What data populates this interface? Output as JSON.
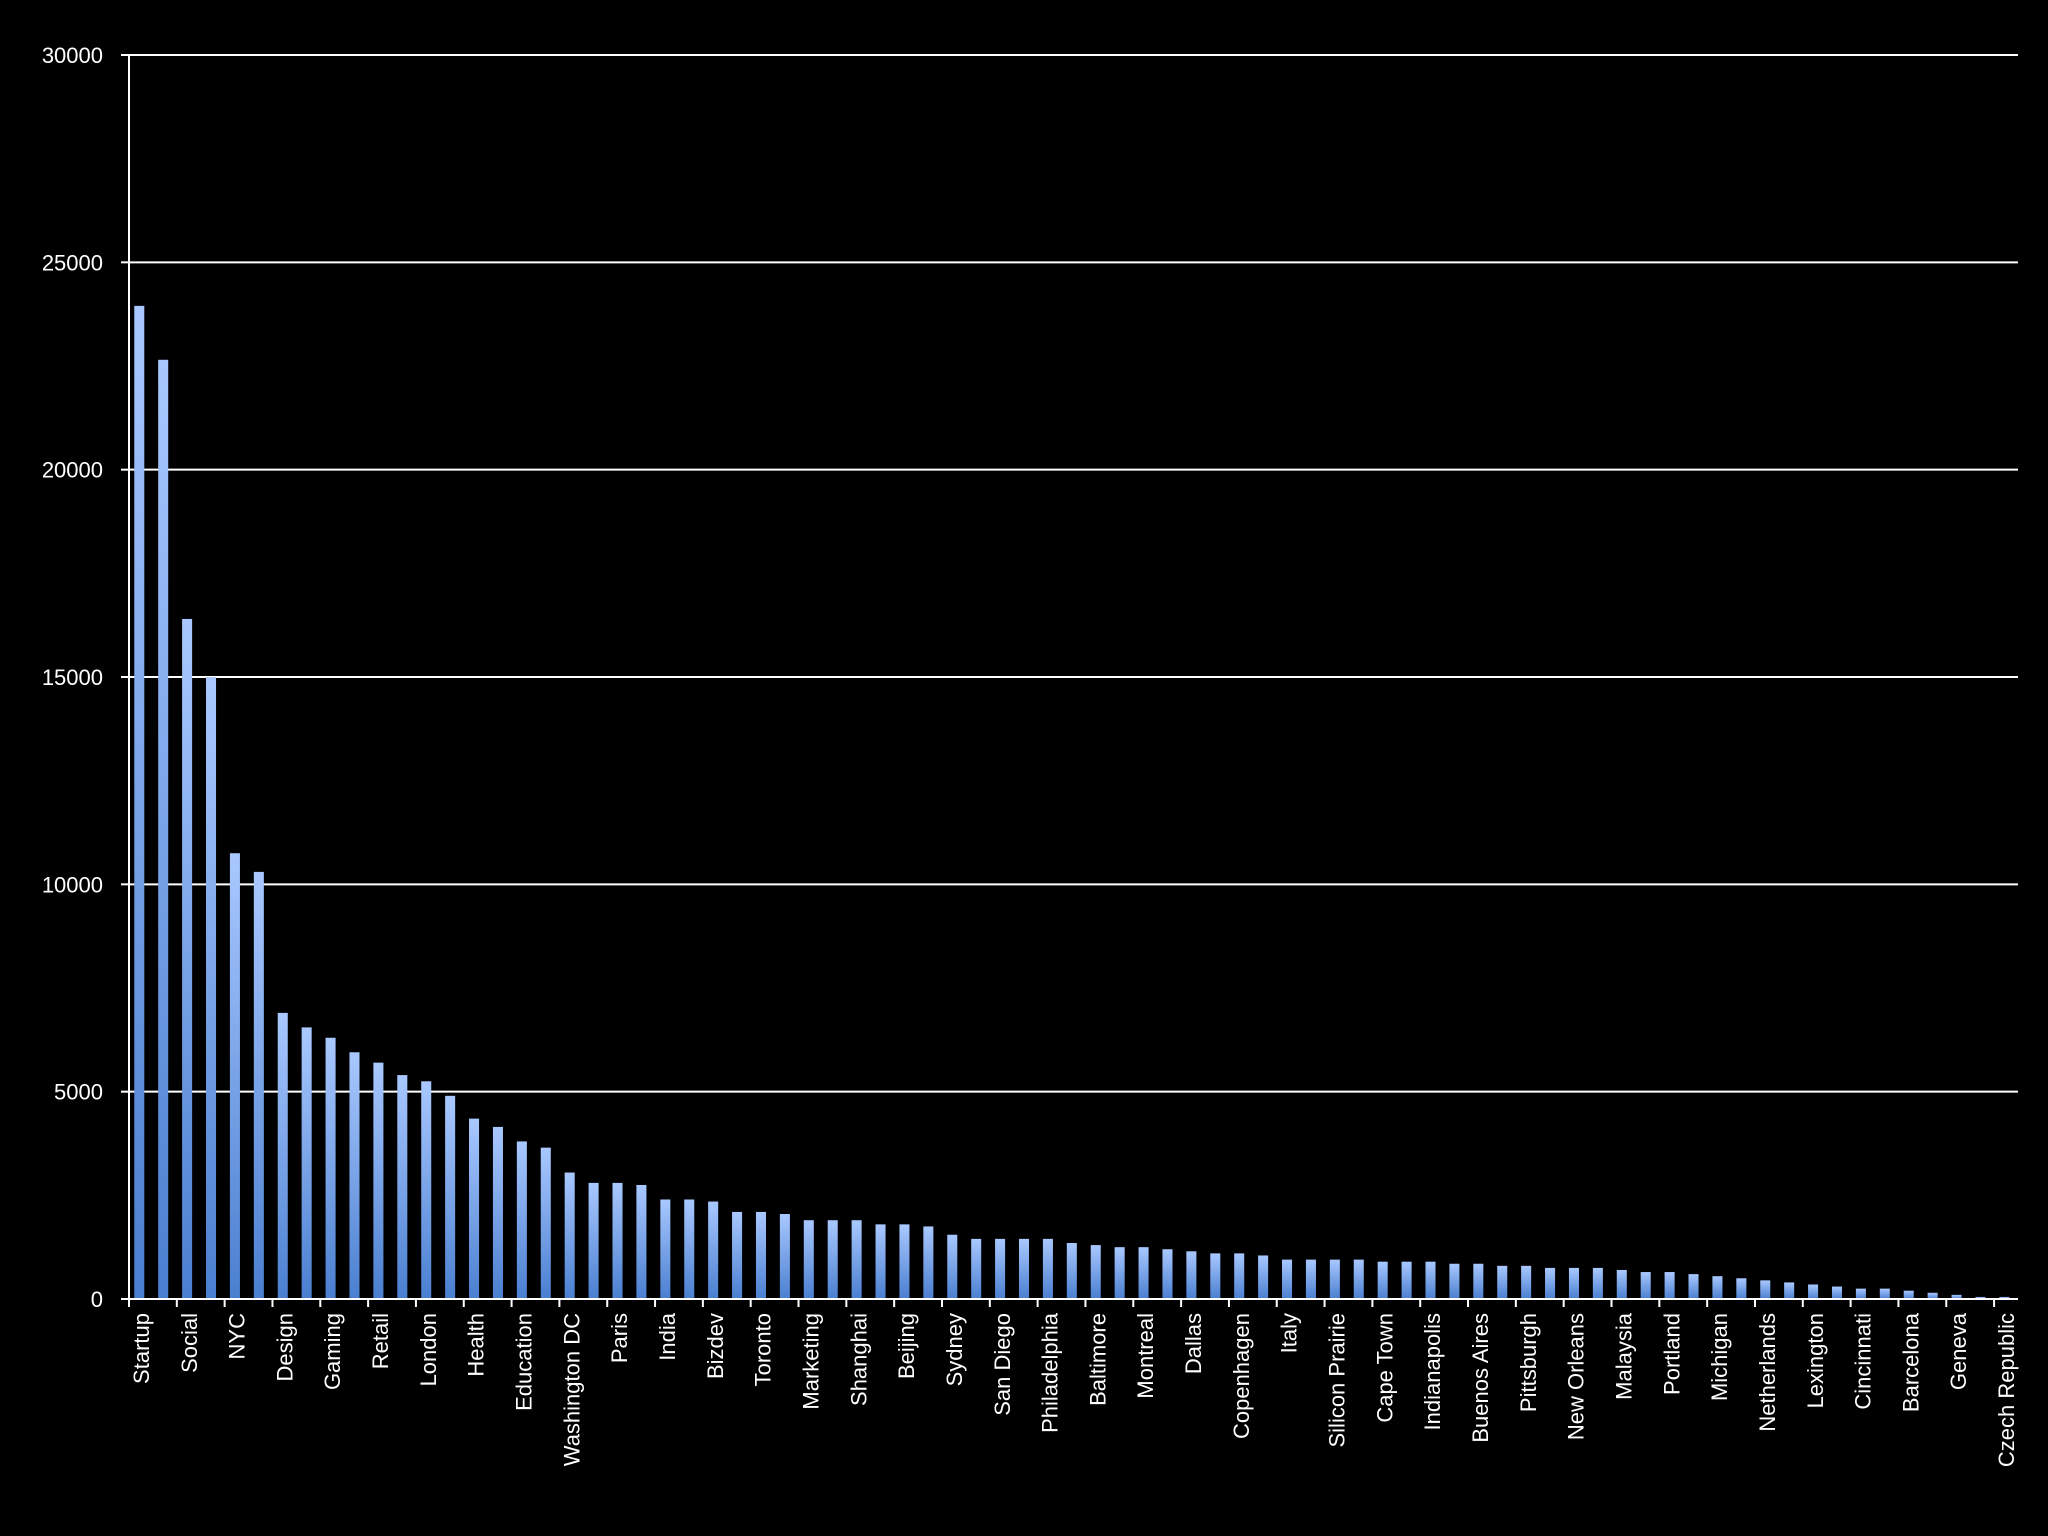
{
  "chart_data": {
    "type": "bar",
    "title": "",
    "xlabel": "",
    "ylabel": "",
    "ylim": [
      0,
      30000
    ],
    "yticks": [
      0,
      5000,
      10000,
      15000,
      20000,
      25000,
      30000
    ],
    "ytick_labels": [
      "0",
      "5000",
      "10000",
      "15000",
      "20000",
      "25000",
      "30000"
    ],
    "grid": true,
    "legend": "none",
    "bar_color_top": "#a9c8ff",
    "bar_color_bottom": "#4a7fd0",
    "background_color": "#000000",
    "axis_color": "#ffffff",
    "label_every": 2,
    "categories": [
      "Startup",
      "",
      "Social",
      "",
      "NYC",
      "",
      "Design",
      "",
      "Gaming",
      "",
      "Retail",
      "",
      "London",
      "",
      "Health",
      "",
      "Education",
      "",
      "Washington DC",
      "",
      "Paris",
      "",
      "India",
      "",
      "Bizdev",
      "",
      "Toronto",
      "",
      "Marketing",
      "",
      "Shanghai",
      "",
      "Beijing",
      "",
      "Sydney",
      "",
      "San Diego",
      "",
      "Philadelphia",
      "",
      "Baltimore",
      "",
      "Montreal",
      "",
      "Dallas",
      "",
      "Copenhagen",
      "",
      "Italy",
      "",
      "Silicon Prairie",
      "",
      "Cape Town",
      "",
      "Indianapolis",
      "",
      "Buenos Aires",
      "",
      "Pittsburgh",
      "",
      "New Orleans",
      "",
      "Malaysia",
      "",
      "Portland",
      "",
      "Michigan",
      "",
      "Netherlands",
      "",
      "Lexington",
      "",
      "Cincinnati",
      "",
      "Barcelona",
      "",
      "Geneva",
      "",
      "Czech Republic"
    ],
    "values": [
      23950,
      22650,
      16400,
      15000,
      10750,
      10300,
      6900,
      6550,
      6300,
      5950,
      5700,
      5400,
      5250,
      4900,
      4350,
      4150,
      3800,
      3650,
      3050,
      2800,
      2800,
      2750,
      2400,
      2400,
      2350,
      2100,
      2100,
      2050,
      1900,
      1900,
      1900,
      1800,
      1800,
      1750,
      1550,
      1450,
      1450,
      1450,
      1450,
      1350,
      1300,
      1250,
      1250,
      1200,
      1150,
      1100,
      1100,
      1050,
      950,
      950,
      950,
      950,
      900,
      900,
      900,
      850,
      850,
      800,
      800,
      750,
      750,
      750,
      700,
      650,
      650,
      600,
      550,
      500,
      450,
      400,
      350,
      300,
      250,
      250,
      200,
      150,
      100,
      50,
      50
    ]
  }
}
